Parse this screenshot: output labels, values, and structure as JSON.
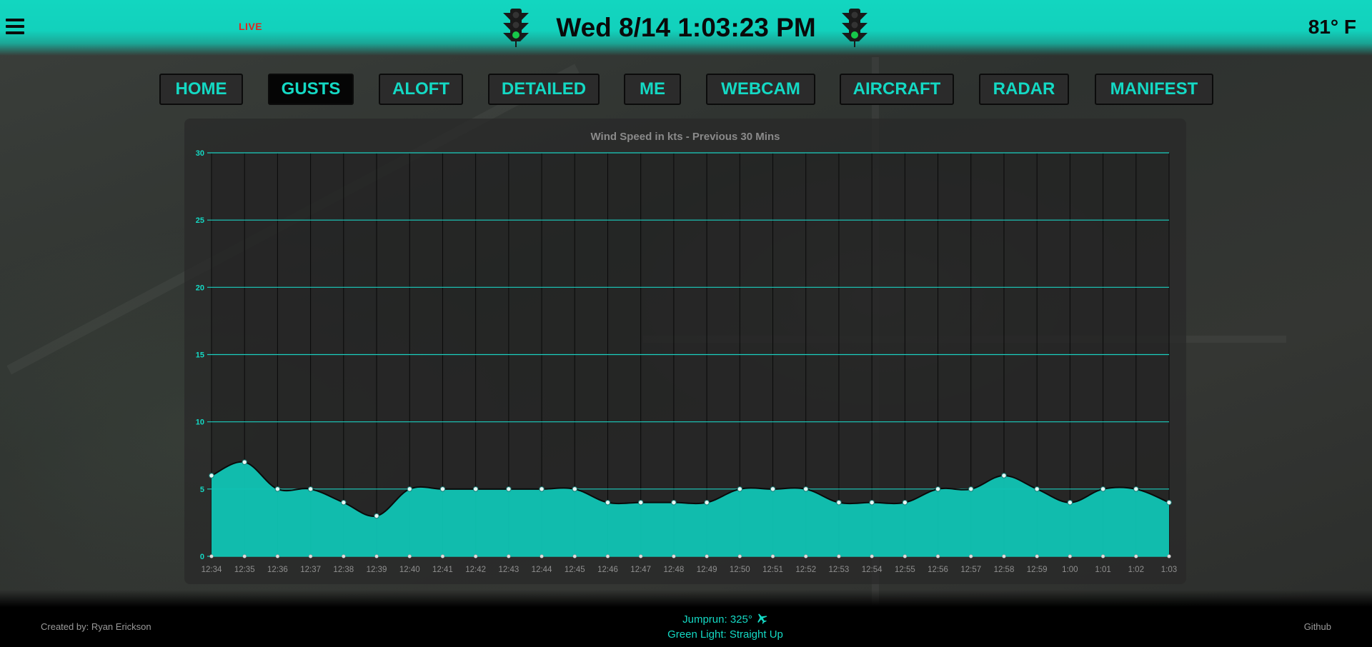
{
  "header": {
    "live_label": "LIVE",
    "datetime": "Wed 8/14 1:03:23 PM",
    "temperature": "81° F",
    "light_color": "#17c84a"
  },
  "nav": {
    "items": [
      {
        "label": "HOME",
        "active": false
      },
      {
        "label": "GUSTS",
        "active": true
      },
      {
        "label": "ALOFT",
        "active": false
      },
      {
        "label": "DETAILED",
        "active": false
      },
      {
        "label": "ME",
        "active": false
      },
      {
        "label": "WEBCAM",
        "active": false
      },
      {
        "label": "AIRCRAFT",
        "active": false
      },
      {
        "label": "RADAR",
        "active": false
      },
      {
        "label": "MANIFEST",
        "active": false
      }
    ]
  },
  "colors": {
    "accent": "#14d9c4",
    "fill": "#10c4b4",
    "grid_h": "#1bcfc0"
  },
  "chart_data": {
    "type": "area",
    "title": "Wind Speed in kts - Previous 30 Mins",
    "xlabel": "",
    "ylabel": "",
    "ylim": [
      0,
      30
    ],
    "y_ticks": [
      "0",
      "5",
      "10",
      "15",
      "20",
      "25",
      "30"
    ],
    "categories": [
      "12:34",
      "12:35",
      "12:36",
      "12:37",
      "12:38",
      "12:39",
      "12:40",
      "12:41",
      "12:42",
      "12:43",
      "12:44",
      "12:45",
      "12:46",
      "12:47",
      "12:48",
      "12:49",
      "12:50",
      "12:51",
      "12:52",
      "12:53",
      "12:54",
      "12:55",
      "12:56",
      "12:57",
      "12:58",
      "12:59",
      "1:00",
      "1:01",
      "1:02",
      "1:03"
    ],
    "series": [
      {
        "values": [
          6,
          7,
          5,
          5,
          4,
          3,
          5,
          5,
          5,
          5,
          5,
          5,
          4,
          4,
          4,
          4,
          5,
          5,
          5,
          4,
          4,
          4,
          5,
          5,
          6,
          5,
          4,
          5,
          5,
          4
        ]
      }
    ],
    "grid": true,
    "legend": "none"
  },
  "footer": {
    "credit": "Created by: Ryan Erickson",
    "jumprun": "Jumprun: 325°",
    "green_light": "Green Light: Straight Up",
    "github": "Github"
  }
}
